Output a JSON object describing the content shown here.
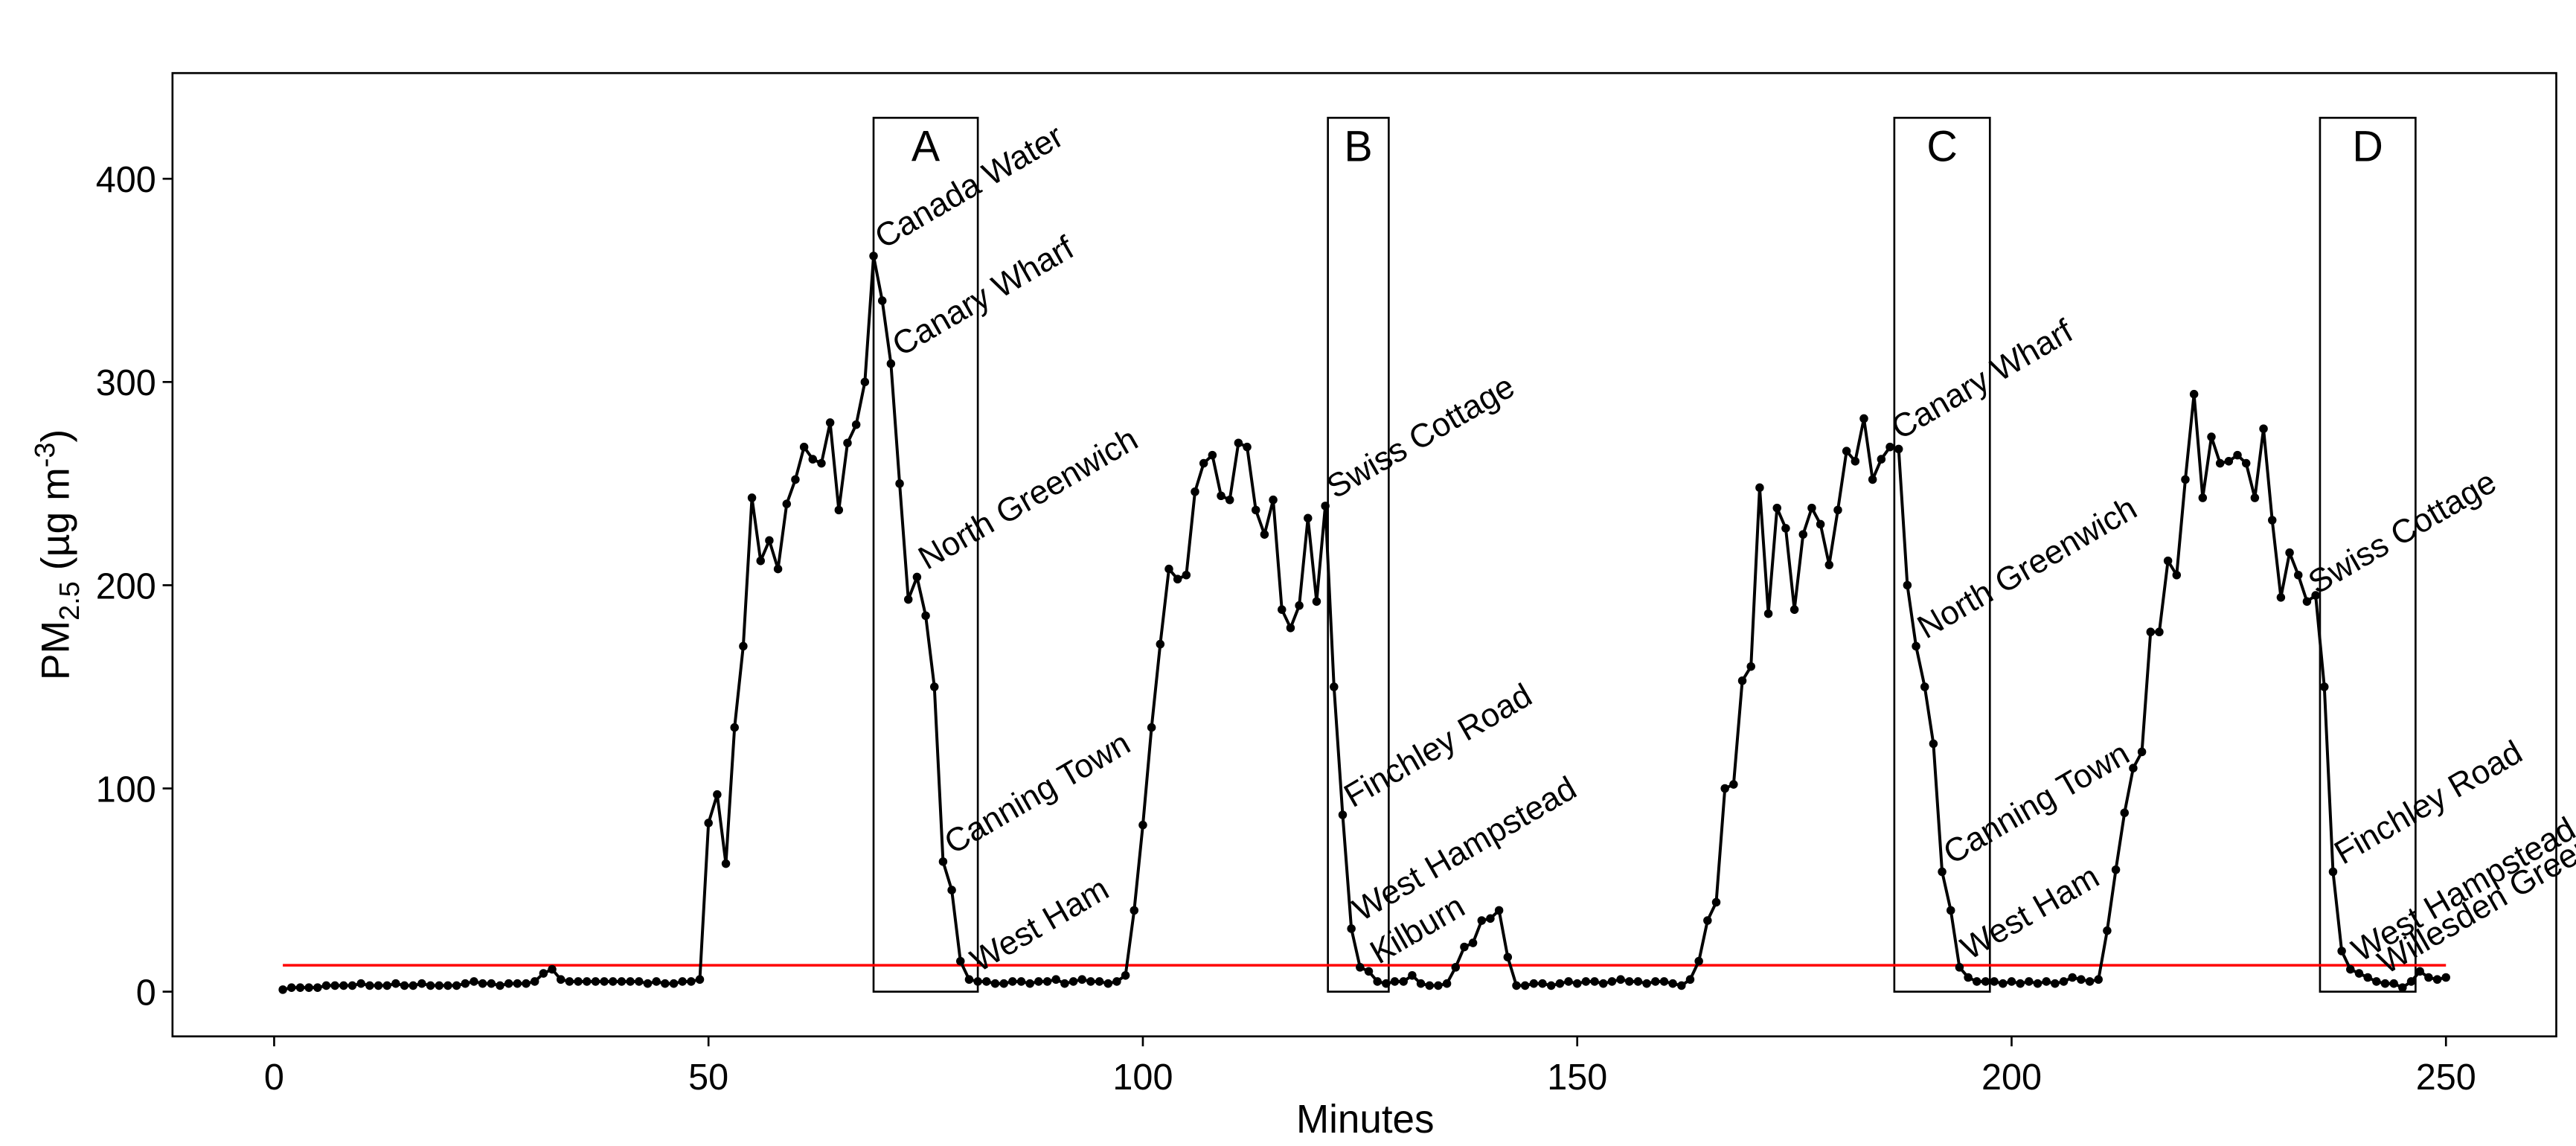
{
  "chart_data": {
    "type": "line",
    "x_label": "Minutes",
    "y_label": [
      "PM",
      "2.5",
      " (µg m",
      "-3",
      ")"
    ],
    "xlim": [
      -11.7,
      262.7
    ],
    "ylim": [
      -22,
      452
    ],
    "xticks": [
      0,
      50,
      100,
      150,
      200,
      250
    ],
    "yticks": [
      0,
      100,
      200,
      300,
      400
    ],
    "series": [
      {
        "name": "PM2.5",
        "color": "#000000",
        "x": [
          1,
          2,
          3,
          4,
          5,
          6,
          7,
          8,
          9,
          10,
          11,
          12,
          13,
          14,
          15,
          16,
          17,
          18,
          19,
          20,
          21,
          22,
          23,
          24,
          25,
          26,
          27,
          28,
          29,
          30,
          31,
          32,
          33,
          34,
          35,
          36,
          37,
          38,
          39,
          40,
          41,
          42,
          43,
          44,
          45,
          46,
          47,
          48,
          49,
          50,
          51,
          52,
          53,
          54,
          55,
          56,
          57,
          58,
          59,
          60,
          61,
          62,
          63,
          64,
          65,
          66,
          67,
          68,
          69,
          70,
          71,
          72,
          73,
          74,
          75,
          76,
          77,
          78,
          79,
          80,
          81,
          82,
          83,
          84,
          85,
          86,
          87,
          88,
          89,
          90,
          91,
          92,
          93,
          94,
          95,
          96,
          97,
          98,
          99,
          100,
          101,
          102,
          103,
          104,
          105,
          106,
          107,
          108,
          109,
          110,
          111,
          112,
          113,
          114,
          115,
          116,
          117,
          118,
          119,
          120,
          121,
          122,
          123,
          124,
          125,
          126,
          127,
          128,
          129,
          130,
          131,
          132,
          133,
          134,
          135,
          136,
          137,
          138,
          139,
          140,
          141,
          142,
          143,
          144,
          145,
          146,
          147,
          148,
          149,
          150,
          151,
          152,
          153,
          154,
          155,
          156,
          157,
          158,
          159,
          160,
          161,
          162,
          163,
          164,
          165,
          166,
          167,
          168,
          169,
          170,
          171,
          172,
          173,
          174,
          175,
          176,
          177,
          178,
          179,
          180,
          181,
          182,
          183,
          184,
          185,
          186,
          187,
          188,
          189,
          190,
          191,
          192,
          193,
          194,
          195,
          196,
          197,
          198,
          199,
          200,
          201,
          202,
          203,
          204,
          205,
          206,
          207,
          208,
          209,
          210,
          211,
          212,
          213,
          214,
          215,
          216,
          217,
          218,
          219,
          220,
          221,
          222,
          223,
          224,
          225,
          226,
          227,
          228,
          229,
          230,
          231,
          232,
          233,
          234,
          235,
          236,
          237,
          238,
          239,
          240,
          241,
          242,
          243,
          244,
          245,
          246,
          247,
          248,
          249,
          250
        ],
        "values": [
          1,
          2,
          2,
          2,
          2,
          3,
          3,
          3,
          3,
          4,
          3,
          3,
          3,
          4,
          3,
          3,
          4,
          3,
          3,
          3,
          3,
          4,
          5,
          4,
          4,
          3,
          4,
          4,
          4,
          5,
          9,
          11,
          6,
          5,
          5,
          5,
          5,
          5,
          5,
          5,
          5,
          5,
          4,
          5,
          4,
          4,
          5,
          5,
          6,
          83,
          97,
          63,
          130,
          170,
          243,
          212,
          222,
          208,
          240,
          252,
          268,
          262,
          260,
          280,
          237,
          270,
          279,
          300,
          362,
          340,
          309,
          250,
          193,
          204,
          185,
          150,
          64,
          50,
          15,
          6,
          5,
          5,
          4,
          4,
          5,
          5,
          4,
          5,
          5,
          6,
          4,
          5,
          6,
          5,
          5,
          4,
          5,
          8,
          40,
          82,
          130,
          171,
          208,
          203,
          205,
          246,
          260,
          264,
          244,
          242,
          270,
          268,
          237,
          225,
          242,
          188,
          179,
          190,
          233,
          192,
          239,
          150,
          87,
          31,
          12,
          10,
          5,
          4,
          5,
          5,
          8,
          4,
          3,
          3,
          4,
          12,
          22,
          24,
          35,
          36,
          40,
          17,
          3,
          3,
          4,
          4,
          3,
          4,
          5,
          4,
          5,
          5,
          4,
          5,
          6,
          5,
          5,
          4,
          5,
          5,
          4,
          3,
          6,
          15,
          35,
          44,
          100,
          102,
          153,
          160,
          248,
          186,
          238,
          228,
          188,
          225,
          238,
          230,
          210,
          237,
          266,
          261,
          282,
          252,
          262,
          268,
          267,
          200,
          170,
          150,
          122,
          59,
          40,
          12,
          7,
          5,
          5,
          5,
          4,
          5,
          4,
          5,
          4,
          5,
          4,
          5,
          7,
          6,
          5,
          6,
          30,
          60,
          88,
          110,
          118,
          177,
          177,
          212,
          205,
          252,
          294,
          243,
          273,
          260,
          261,
          264,
          260,
          243,
          277,
          232,
          194,
          216,
          205,
          192,
          195,
          150,
          59,
          20,
          11,
          9,
          7,
          5,
          4,
          4,
          2,
          5,
          10,
          7,
          6,
          7
        ]
      }
    ],
    "reference_line": {
      "y": 13,
      "x": [
        1,
        250
      ],
      "color": "#ff0000"
    },
    "boxes": [
      {
        "label": "A",
        "x": [
          69,
          81
        ],
        "top": 430
      },
      {
        "label": "B",
        "x": [
          121.3,
          128.3
        ],
        "top": 430
      },
      {
        "label": "C",
        "x": [
          186.5,
          197.5
        ],
        "top": 430
      },
      {
        "label": "D",
        "x": [
          235.5,
          246.5
        ],
        "top": 430
      }
    ],
    "annotations": [
      {
        "text": "Canada Water",
        "x": 69
      },
      {
        "text": "Canary Wharf",
        "x": 71
      },
      {
        "text": "North Greenwich",
        "x": 74
      },
      {
        "text": "Canning Town",
        "x": 77
      },
      {
        "text": "West Ham",
        "x": 80
      },
      {
        "text": "Swiss Cottage",
        "x": 121
      },
      {
        "text": "Finchley Road",
        "x": 123
      },
      {
        "text": "West Hampstead",
        "x": 124
      },
      {
        "text": "Kilburn",
        "x": 126
      },
      {
        "text": "Canary Wharf",
        "x": 186
      },
      {
        "text": "North Greenwich",
        "x": 189
      },
      {
        "text": "Canning Town",
        "x": 192
      },
      {
        "text": "West Ham",
        "x": 194
      },
      {
        "text": "Swiss Cottage",
        "x": 234
      },
      {
        "text": "Finchley Road",
        "x": 237
      },
      {
        "text": "West Hampstead",
        "x": 239
      },
      {
        "text": "Willesden Green",
        "x": 242
      }
    ]
  }
}
